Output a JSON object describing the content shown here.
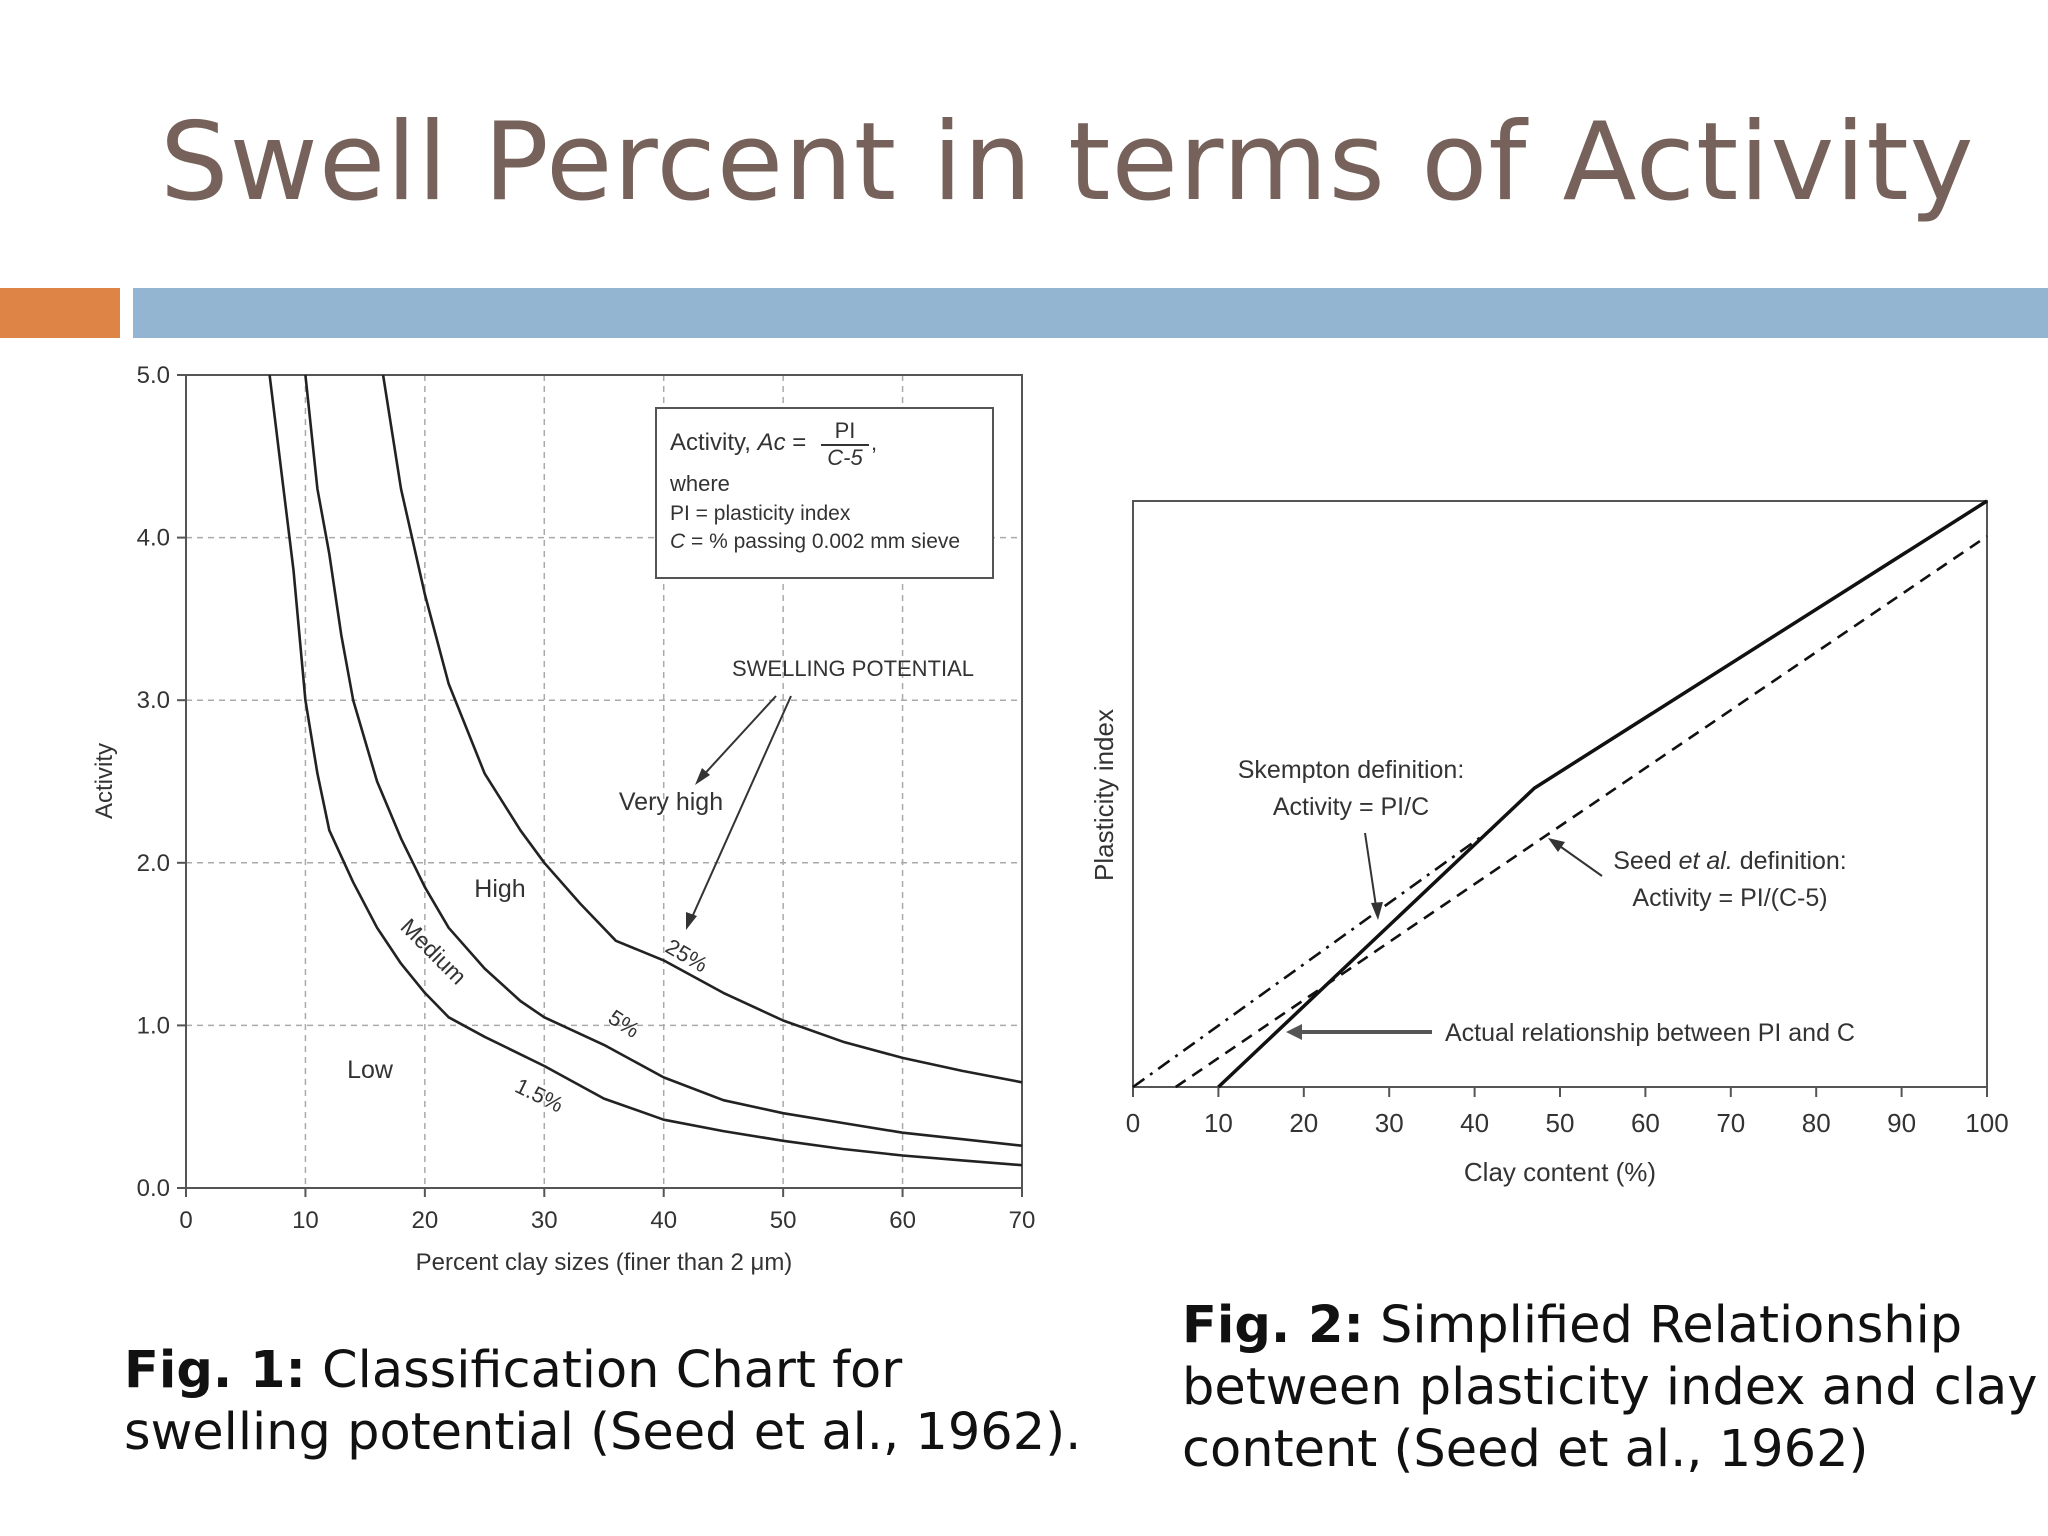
{
  "slide": {
    "title": "Swell Percent in terms of Activity",
    "accent_colors": {
      "orange": "#df8447",
      "blue": "#93b5d1",
      "title": "#76625a"
    }
  },
  "fig1": {
    "caption_label": "Fig. 1:",
    "caption_text": " Classification Chart for swelling potential (Seed et al., 1962).",
    "box": {
      "line1_prefix": "Activity, ",
      "line1_var": "Ac",
      "line1_eq": " = ",
      "frac_num": "PI",
      "frac_den": "C-5",
      "line1_suffix": ",",
      "line2": "where",
      "line3": "PI = plasticity index",
      "line4_var": "C",
      "line4_rest": " = % passing 0.002 mm sieve"
    },
    "swelling_potential_label": "SWELLING POTENTIAL",
    "regions": {
      "very_high": "Very high",
      "high": "High",
      "medium": "Medium",
      "low": "Low"
    },
    "curve_labels": {
      "c25": "25%",
      "c5": "5%",
      "c15": "1.5%"
    }
  },
  "fig2": {
    "caption_label": "Fig. 2:",
    "caption_text": " Simplified Relationship between plasticity index and clay content (Seed et al., 1962)",
    "skempton_line1": "Skempton definition:",
    "skempton_line2": "Activity = PI/C",
    "seed_line1_a": "Seed ",
    "seed_line1_b": "et al.",
    "seed_line1_c": " definition:",
    "seed_line2": "Activity = PI/(C-5)",
    "actual_label": "Actual relationship between PI and C"
  },
  "chart_data": [
    {
      "type": "line",
      "xlabel": "Percent clay sizes (finer than 2 μm)",
      "ylabel": "Activity",
      "xlim": [
        0,
        70
      ],
      "ylim": [
        0,
        5
      ],
      "x_ticks": [
        "0",
        "10",
        "20",
        "30",
        "40",
        "50",
        "60",
        "70"
      ],
      "y_ticks": [
        "0.0",
        "1.0",
        "2.0",
        "3.0",
        "4.0",
        "5.0"
      ],
      "grid": true,
      "series": [
        {
          "name": "1.5%",
          "x": [
            7,
            8,
            9,
            10,
            11,
            12,
            14,
            16,
            18,
            20,
            22,
            25,
            30,
            35,
            40,
            45,
            50,
            55,
            60,
            65,
            70
          ],
          "y": [
            5.0,
            4.4,
            3.8,
            3.0,
            2.55,
            2.2,
            1.88,
            1.6,
            1.38,
            1.2,
            1.05,
            0.93,
            0.75,
            0.55,
            0.42,
            0.35,
            0.29,
            0.24,
            0.2,
            0.17,
            0.14
          ]
        },
        {
          "name": "5%",
          "x": [
            10,
            11,
            12,
            13,
            14,
            15,
            16,
            18,
            20,
            22,
            25,
            28,
            30,
            35,
            40,
            45,
            50,
            55,
            60,
            65,
            70
          ],
          "y": [
            5.0,
            4.3,
            3.9,
            3.4,
            3.0,
            2.75,
            2.5,
            2.15,
            1.85,
            1.6,
            1.35,
            1.15,
            1.05,
            0.88,
            0.68,
            0.54,
            0.46,
            0.4,
            0.34,
            0.3,
            0.26
          ]
        },
        {
          "name": "25%",
          "x": [
            16.5,
            18,
            20,
            22,
            25,
            28,
            30,
            33,
            36,
            40,
            45,
            50,
            55,
            60,
            65,
            70
          ],
          "y": [
            5.0,
            4.3,
            3.65,
            3.1,
            2.55,
            2.2,
            2.0,
            1.75,
            1.52,
            1.4,
            1.2,
            1.03,
            0.9,
            0.8,
            0.72,
            0.65
          ]
        }
      ]
    },
    {
      "type": "line",
      "xlabel": "Clay content (%)",
      "ylabel": "Plasticity index",
      "xlim": [
        0,
        100
      ],
      "x_ticks": [
        "0",
        "10",
        "20",
        "30",
        "40",
        "50",
        "60",
        "70",
        "80",
        "90",
        "100"
      ],
      "grid": false,
      "series": [
        {
          "name": "Actual relationship between PI and C",
          "style": "solid",
          "x": [
            10,
            47,
            100
          ],
          "y": [
            0,
            0.51,
            1.0
          ]
        },
        {
          "name": "Skempton definition: Activity = PI/C",
          "style": "dash-dot",
          "x": [
            0,
            42
          ],
          "y": [
            0.0,
            0.44
          ]
        },
        {
          "name": "Seed et al. definition: Activity = PI/(C-5)",
          "style": "dashed",
          "x": [
            5,
            100
          ],
          "y": [
            0.0,
            0.94
          ]
        }
      ]
    }
  ]
}
